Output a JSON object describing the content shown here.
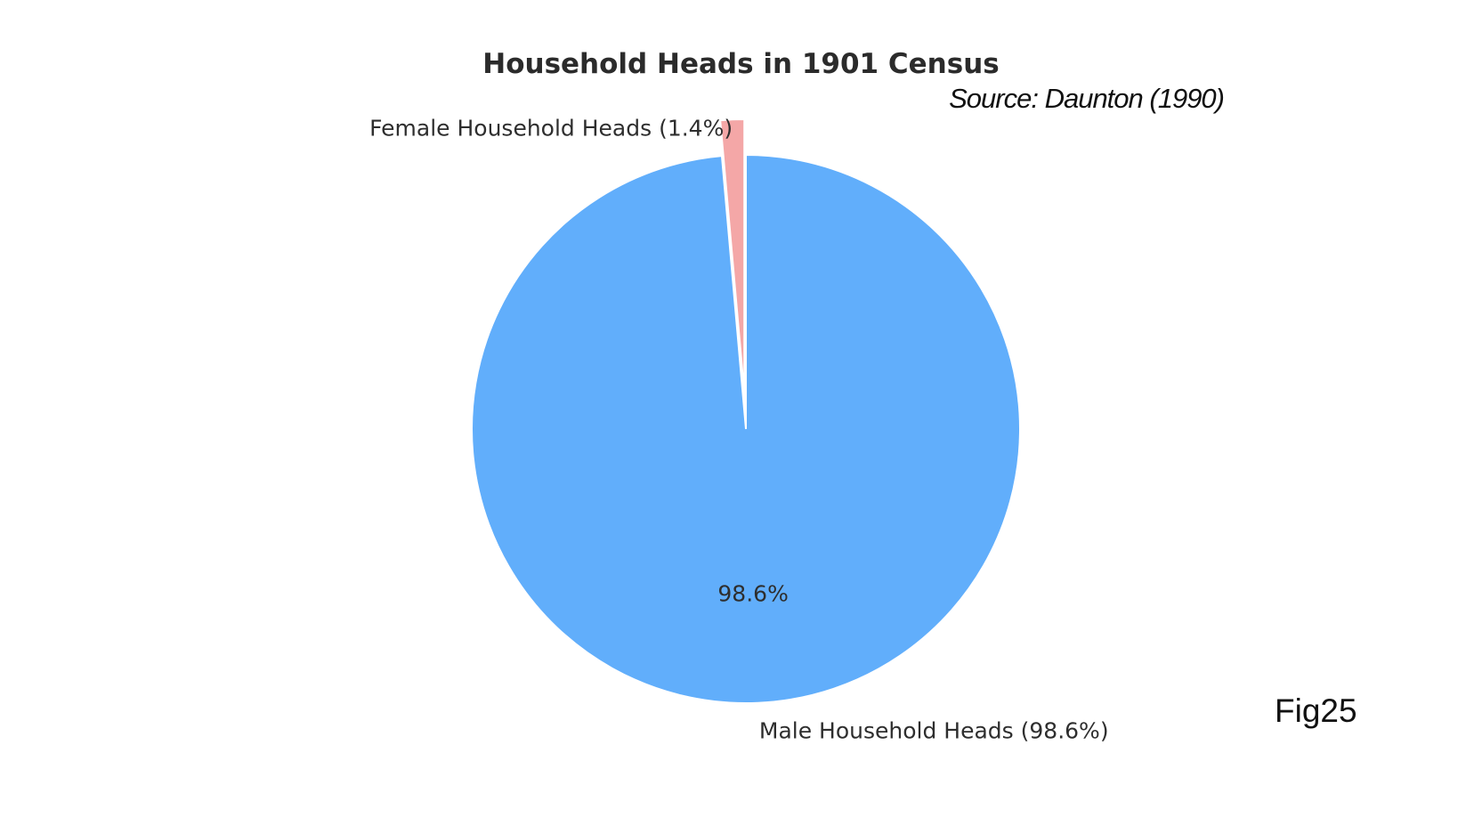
{
  "chart_data": {
    "type": "pie",
    "title": "Household Heads in 1901 Census",
    "categories": [
      "Female Household Heads",
      "Male Household Heads"
    ],
    "values": [
      1.4,
      98.6
    ],
    "slice_labels": [
      "Female Household Heads (1.4%)",
      "Male Household Heads (98.6%)"
    ],
    "autopct_labels": [
      "",
      "98.6%"
    ],
    "colors": [
      "#f4a7a7",
      "#61aefb"
    ],
    "exploded": [
      "Female Household Heads"
    ]
  },
  "annotations": {
    "source": "Source: Daunton (1990)",
    "figure_number": "Fig25"
  }
}
